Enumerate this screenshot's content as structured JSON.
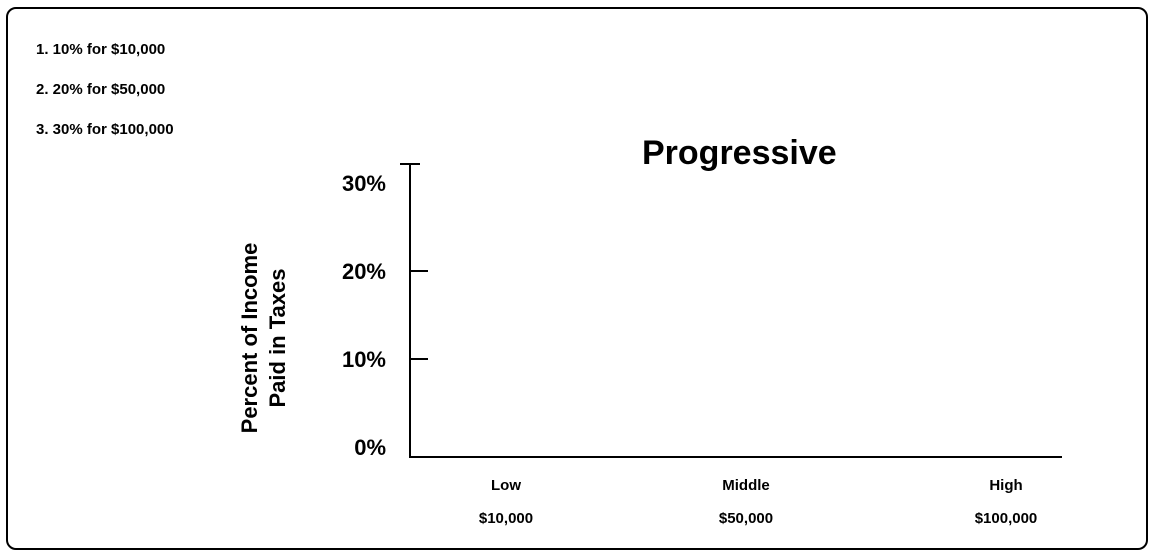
{
  "notes": [
    "1.  10% for $10,000",
    "2.  20% for $50,000",
    "3.  30% for $100,000"
  ],
  "chart_data": {
    "type": "line",
    "title": "Progressive",
    "ylabel_lines": [
      "Percent of Income",
      "Paid in Taxes"
    ],
    "xlabel": "",
    "y_ticks": [
      {
        "value": 0,
        "label": "0%"
      },
      {
        "value": 10,
        "label": "10%"
      },
      {
        "value": 20,
        "label": "20%"
      },
      {
        "value": 30,
        "label": "30%"
      }
    ],
    "ylim": [
      0,
      32
    ],
    "categories": [
      {
        "name": "Low",
        "income": "$10,000"
      },
      {
        "name": "Middle",
        "income": "$50,000"
      },
      {
        "name": "High",
        "income": "$100,000"
      }
    ],
    "series": [],
    "grid": false,
    "legend": "none"
  }
}
